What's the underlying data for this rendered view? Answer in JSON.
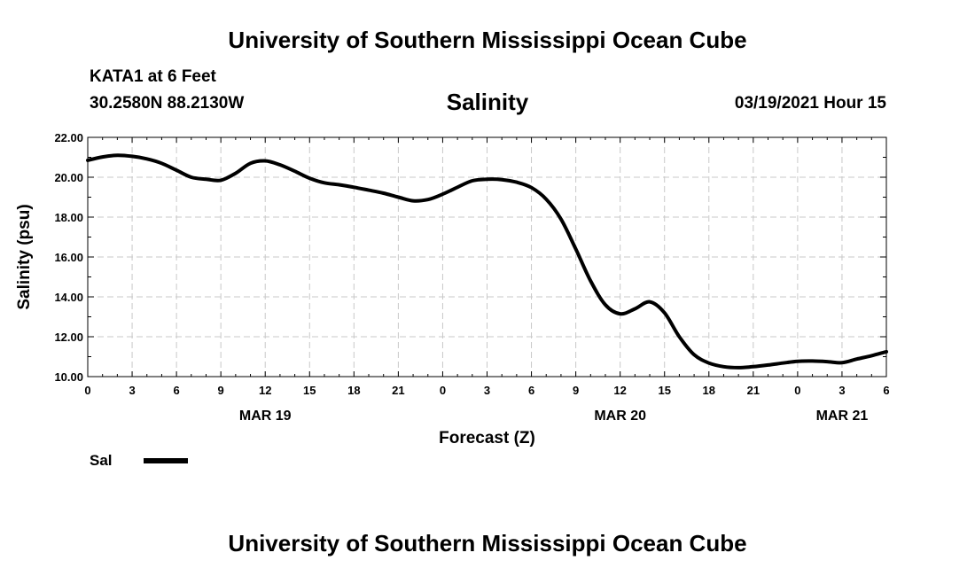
{
  "header": {
    "organization": "University of Southern Mississippi Ocean Cube",
    "station": "KATA1 at 6 Feet",
    "coordinates": "30.2580N 88.2130W",
    "datetime": "03/19/2021 Hour 15"
  },
  "footer": {
    "organization": "University of Southern Mississippi Ocean Cube"
  },
  "legend": {
    "label": "Sal",
    "color": "#000000"
  },
  "chart_data": {
    "type": "line",
    "title": "Salinity",
    "xlabel": "Forecast (Z)",
    "ylabel": "Salinity (psu)",
    "ylim": [
      10.0,
      22.0
    ],
    "yticks": [
      "10.00",
      "12.00",
      "14.00",
      "16.00",
      "18.00",
      "20.00",
      "22.00"
    ],
    "xlim": [
      0,
      54
    ],
    "xtick_labels": [
      "0",
      "3",
      "6",
      "9",
      "12",
      "15",
      "18",
      "21",
      "0",
      "3",
      "6",
      "9",
      "12",
      "15",
      "18",
      "21",
      "0",
      "3",
      "6"
    ],
    "date_labels": [
      {
        "label": "MAR 19",
        "at_hour": 12
      },
      {
        "label": "MAR 20",
        "at_hour": 36
      },
      {
        "label": "MAR 21",
        "at_hour": 51
      }
    ],
    "grid": true,
    "legend_position": "bottom-left",
    "series": [
      {
        "name": "Sal",
        "color": "#000000",
        "x": [
          0,
          1,
          2,
          3,
          4,
          5,
          6,
          7,
          8,
          9,
          10,
          11,
          12,
          13,
          14,
          15,
          16,
          17,
          18,
          19,
          20,
          21,
          22,
          23,
          24,
          25,
          26,
          27,
          28,
          29,
          30,
          31,
          32,
          33,
          34,
          35,
          36,
          37,
          38,
          39,
          40,
          41,
          42,
          43,
          44,
          45,
          46,
          47,
          48,
          49,
          50,
          51,
          52,
          53,
          54
        ],
        "values": [
          20.85,
          21.02,
          21.1,
          21.05,
          20.92,
          20.7,
          20.35,
          20.0,
          19.9,
          19.85,
          20.2,
          20.7,
          20.82,
          20.62,
          20.3,
          19.95,
          19.72,
          19.62,
          19.5,
          19.35,
          19.2,
          19.0,
          18.82,
          18.88,
          19.15,
          19.5,
          19.82,
          19.9,
          19.88,
          19.75,
          19.48,
          18.9,
          17.9,
          16.4,
          14.8,
          13.6,
          13.15,
          13.4,
          13.75,
          13.2,
          12.0,
          11.1,
          10.68,
          10.5,
          10.45,
          10.5,
          10.58,
          10.68,
          10.77,
          10.78,
          10.75,
          10.7,
          10.88,
          11.05,
          11.25
        ]
      }
    ]
  }
}
